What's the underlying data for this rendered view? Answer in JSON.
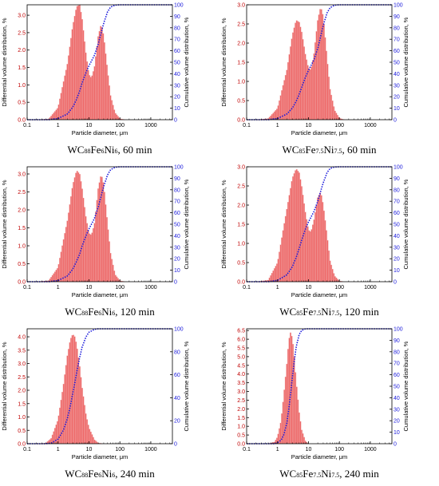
{
  "chart_data": [
    {
      "type": "area",
      "caption": {
        "base": "WC",
        "s1": "88",
        "el1": "Fe",
        "s2": "6",
        "el2": "Ni",
        "s3": "6",
        "tail": ", 60 min"
      },
      "xlabel": "Particle diameter, μm",
      "ylabel_left": "Differential volume distribution, %",
      "ylabel_right": "Cumulative volume distribution, %",
      "xscale": "log",
      "xlim": [
        0.1,
        5000
      ],
      "xticks": [
        0.1,
        1,
        10,
        100,
        1000
      ],
      "ylim_left": [
        0,
        3.3
      ],
      "yticks_left": [
        0.0,
        0.5,
        1.0,
        1.5,
        2.0,
        2.5,
        3.0
      ],
      "ylim_right": [
        0,
        100
      ],
      "yticks_right": [
        0,
        10,
        20,
        30,
        40,
        50,
        60,
        70,
        80,
        90,
        100
      ],
      "series": [
        {
          "values_x": [
            0.2,
            0.5,
            1,
            2,
            3,
            4,
            5,
            6,
            8,
            10,
            12,
            15,
            20,
            25,
            30,
            40,
            50,
            70,
            100,
            150
          ],
          "values_y": [
            0,
            0.02,
            0.35,
            1.6,
            2.7,
            3.25,
            3.3,
            2.9,
            1.9,
            1.3,
            1.2,
            1.5,
            2.4,
            2.75,
            2.4,
            1.4,
            0.7,
            0.2,
            0.03,
            0
          ]
        },
        {
          "values_x": [
            0.2,
            0.5,
            1,
            2,
            3,
            4,
            5,
            6,
            8,
            10,
            12,
            15,
            20,
            25,
            30,
            40,
            50,
            70,
            100,
            150
          ],
          "values_y": [
            0,
            0,
            1,
            5,
            11,
            18,
            25,
            32,
            41,
            47,
            51,
            56,
            66,
            76,
            84,
            94,
            98,
            99.7,
            100,
            100
          ]
        }
      ]
    },
    {
      "type": "area",
      "caption": {
        "base": "WC",
        "s1": "85",
        "el1": "Fe",
        "s2": "7.5",
        "el2": "Ni",
        "s3": "7.5",
        "tail": ", 60 min"
      },
      "xlabel": "Particle diameter, μm",
      "ylabel_left": "Differential volume distribution, %",
      "ylabel_right": "Cumulative volume distribution, %",
      "xscale": "log",
      "xlim": [
        0.1,
        5000
      ],
      "xticks": [
        0.1,
        1,
        10,
        100,
        1000
      ],
      "ylim_left": [
        0,
        3.0
      ],
      "yticks_left": [
        0.0,
        0.5,
        1.0,
        1.5,
        2.0,
        2.5,
        3.0
      ],
      "ylim_right": [
        0,
        100
      ],
      "yticks_right": [
        0,
        10,
        20,
        30,
        40,
        50,
        60,
        70,
        80,
        90,
        100
      ],
      "series": [
        {
          "values_x": [
            0.2,
            0.5,
            1,
            2,
            3,
            4,
            5,
            6,
            8,
            10,
            12,
            15,
            20,
            25,
            30,
            40,
            50,
            70,
            100,
            150
          ],
          "values_y": [
            0,
            0.03,
            0.3,
            1.3,
            2.2,
            2.6,
            2.55,
            2.3,
            1.7,
            1.35,
            1.3,
            1.7,
            2.6,
            2.95,
            2.7,
            1.6,
            0.8,
            0.25,
            0.04,
            0
          ]
        },
        {
          "values_x": [
            0.2,
            0.5,
            1,
            2,
            3,
            4,
            5,
            6,
            8,
            10,
            12,
            15,
            20,
            25,
            30,
            40,
            50,
            70,
            100,
            150
          ],
          "values_y": [
            0,
            0,
            1,
            5,
            10,
            16,
            22,
            28,
            37,
            43,
            47,
            52,
            62,
            73,
            82,
            93,
            97.5,
            99.6,
            100,
            100
          ]
        }
      ]
    },
    {
      "type": "area",
      "caption": {
        "base": "WC",
        "s1": "88",
        "el1": "Fe",
        "s2": "6",
        "el2": "Ni",
        "s3": "6",
        "tail": ", 120 min"
      },
      "xlabel": "Particle diameter, μm",
      "ylabel_left": "Differential volume distribution, %",
      "ylabel_right": "Cumulative volume distribution, %",
      "xscale": "log",
      "xlim": [
        0.1,
        5000
      ],
      "xticks": [
        0.1,
        1,
        10,
        100,
        1000
      ],
      "ylim_left": [
        0,
        3.2
      ],
      "yticks_left": [
        0.0,
        0.5,
        1.0,
        1.5,
        2.0,
        2.5,
        3.0
      ],
      "ylim_right": [
        0,
        100
      ],
      "yticks_right": [
        0,
        10,
        20,
        30,
        40,
        50,
        60,
        70,
        80,
        90,
        100
      ],
      "series": [
        {
          "values_x": [
            0.2,
            0.5,
            1,
            2,
            3,
            4,
            5,
            6,
            8,
            10,
            12,
            15,
            20,
            25,
            30,
            40,
            50,
            70,
            100,
            150
          ],
          "values_y": [
            0,
            0.03,
            0.4,
            1.7,
            2.7,
            3.1,
            3.0,
            2.6,
            1.8,
            1.35,
            1.3,
            1.6,
            2.6,
            3.0,
            2.7,
            1.6,
            0.8,
            0.2,
            0.03,
            0
          ]
        },
        {
          "values_x": [
            0.2,
            0.5,
            1,
            2,
            3,
            4,
            5,
            6,
            8,
            10,
            12,
            15,
            20,
            25,
            30,
            40,
            50,
            70,
            100,
            150
          ],
          "values_y": [
            0,
            0,
            1,
            5,
            11,
            18,
            24,
            31,
            40,
            46,
            50,
            55,
            65,
            75,
            83,
            93,
            97.5,
            99.6,
            100,
            100
          ]
        }
      ]
    },
    {
      "type": "area",
      "caption": {
        "base": "WC",
        "s1": "85",
        "el1": "Fe",
        "s2": "7.5",
        "el2": "Ni",
        "s3": "7.5",
        "tail": ", 120 min"
      },
      "xlabel": "Particle diameter, μm",
      "ylabel_left": "Differential volume distribution, %",
      "ylabel_right": "Cumulative volume distribution, %",
      "xscale": "log",
      "xlim": [
        0.1,
        5000
      ],
      "xticks": [
        0.1,
        1,
        10,
        100,
        1000
      ],
      "ylim_left": [
        0,
        3.0
      ],
      "yticks_left": [
        0.0,
        0.5,
        1.0,
        1.5,
        2.0,
        2.5,
        3.0
      ],
      "ylim_right": [
        0,
        100
      ],
      "yticks_right": [
        0,
        10,
        20,
        30,
        40,
        50,
        60,
        70,
        80,
        90,
        100
      ],
      "series": [
        {
          "values_x": [
            0.2,
            0.5,
            1,
            2,
            3,
            4,
            5,
            6,
            8,
            10,
            12,
            15,
            20,
            25,
            30,
            40,
            50,
            70,
            100,
            150
          ],
          "values_y": [
            0,
            0.04,
            0.5,
            1.9,
            2.7,
            2.95,
            2.85,
            2.5,
            1.8,
            1.35,
            1.3,
            1.6,
            2.2,
            2.35,
            2.0,
            1.2,
            0.55,
            0.15,
            0.02,
            0
          ]
        },
        {
          "values_x": [
            0.2,
            0.5,
            1,
            2,
            3,
            4,
            5,
            6,
            8,
            10,
            12,
            15,
            20,
            25,
            30,
            40,
            50,
            70,
            100,
            150
          ],
          "values_y": [
            0,
            0,
            1.2,
            6,
            13,
            21,
            29,
            36,
            46,
            52,
            56,
            61,
            70,
            79,
            86,
            95,
            98.5,
            99.8,
            100,
            100
          ]
        }
      ]
    },
    {
      "type": "area",
      "caption": {
        "base": "WC",
        "s1": "88",
        "el1": "Fe",
        "s2": "6",
        "el2": "Ni",
        "s3": "6",
        "tail": ", 240 min"
      },
      "xlabel": "Particle diameter, μm",
      "ylabel_left": "Differential volume distribution, %",
      "ylabel_right": "Cumulative volume distribution, %",
      "xscale": "log",
      "xlim": [
        0.1,
        5000
      ],
      "xticks": [
        0.1,
        1,
        10,
        100,
        1000
      ],
      "ylim_left": [
        0,
        4.3
      ],
      "yticks_left": [
        0.0,
        0.5,
        1.0,
        1.5,
        2.0,
        2.5,
        3.0,
        3.5,
        4.0
      ],
      "ylim_right": [
        0,
        100
      ],
      "yticks_right": [
        0,
        20,
        40,
        60,
        80,
        100
      ],
      "series": [
        {
          "values_x": [
            0.2,
            0.4,
            0.6,
            1,
            1.5,
            2,
            2.5,
            3,
            3.5,
            4,
            5,
            6,
            8,
            10,
            15,
            20,
            30
          ],
          "values_y": [
            0,
            0.02,
            0.2,
            0.9,
            2.2,
            3.3,
            3.9,
            4.1,
            4.0,
            3.7,
            2.9,
            2.1,
            1.1,
            0.6,
            0.15,
            0.03,
            0
          ]
        },
        {
          "values_x": [
            0.2,
            0.4,
            0.6,
            1,
            1.5,
            2,
            2.5,
            3,
            3.5,
            4,
            5,
            6,
            8,
            10,
            15,
            20,
            30
          ],
          "values_y": [
            0,
            0,
            0.5,
            4,
            12,
            22,
            33,
            44,
            53,
            62,
            75,
            84,
            93,
            97,
            99.5,
            100,
            100
          ]
        }
      ]
    },
    {
      "type": "area",
      "caption": {
        "base": "WC",
        "s1": "85",
        "el1": "Fe",
        "s2": "7.5",
        "el2": "Ni",
        "s3": "7.5",
        "tail": ", 240 min"
      },
      "xlabel": "Particle diameter, μm",
      "ylabel_left": "Differential volume distribution, %",
      "ylabel_right": "Cumulative volume distribution, %",
      "xscale": "log",
      "xlim": [
        0.1,
        5000
      ],
      "xticks": [
        0.1,
        1,
        10,
        100,
        1000
      ],
      "ylim_left": [
        0,
        6.6
      ],
      "yticks_left": [
        0.0,
        0.5,
        1.0,
        1.5,
        2.0,
        2.5,
        3.0,
        3.5,
        4.0,
        4.5,
        5.0,
        5.5,
        6.0,
        6.5
      ],
      "ylim_right": [
        0,
        100
      ],
      "yticks_right": [
        0,
        10,
        20,
        30,
        40,
        50,
        60,
        70,
        80,
        90,
        100
      ],
      "series": [
        {
          "values_x": [
            0.5,
            0.8,
            1,
            1.3,
            1.6,
            2,
            2.3,
            2.6,
            3,
            3.4,
            4,
            5,
            6,
            8,
            10
          ],
          "values_y": [
            0,
            0.1,
            0.4,
            1.3,
            2.8,
            4.6,
            5.9,
            6.4,
            6.1,
            5.2,
            3.6,
            1.8,
            0.8,
            0.15,
            0
          ]
        },
        {
          "values_x": [
            0.5,
            0.8,
            1,
            1.3,
            1.6,
            2,
            2.3,
            2.6,
            3,
            3.4,
            4,
            5,
            6,
            8,
            10
          ],
          "values_y": [
            0,
            0,
            1,
            3,
            8,
            18,
            30,
            42,
            57,
            70,
            84,
            95,
            98.5,
            100,
            100
          ]
        }
      ]
    }
  ]
}
